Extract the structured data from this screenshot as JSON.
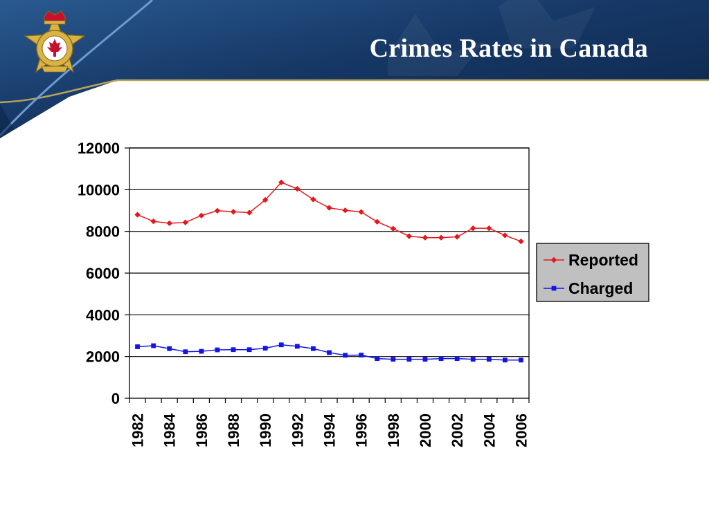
{
  "slide": {
    "title": "Crimes Rates in Canada",
    "theme_colors": {
      "banner_dark": "#0f2a50",
      "banner_mid": "#1f4f86",
      "accent_line": "#b9a25a"
    },
    "logo": {
      "icon": "correctional-service-canada-badge-icon",
      "colors": {
        "gold": "#c8a23a",
        "red": "#c8102e"
      }
    }
  },
  "chart_data": {
    "type": "line",
    "title": "",
    "xlabel": "",
    "ylabel": "",
    "ylim": [
      0,
      12000
    ],
    "yticks": [
      0,
      2000,
      4000,
      6000,
      8000,
      10000,
      12000
    ],
    "xlim": [
      1982,
      2006
    ],
    "xticks": [
      1982,
      1984,
      1986,
      1988,
      1990,
      1992,
      1994,
      1996,
      1998,
      2000,
      2002,
      2004,
      2006
    ],
    "grid": "horizontal",
    "legend": "right",
    "x": [
      1982,
      1983,
      1984,
      1985,
      1986,
      1987,
      1988,
      1989,
      1990,
      1991,
      1992,
      1993,
      1994,
      1995,
      1996,
      1997,
      1998,
      1999,
      2000,
      2001,
      2002,
      2003,
      2004,
      2005,
      2006
    ],
    "series": [
      {
        "name": "Reported",
        "color": "#e8151b",
        "marker": "diamond",
        "values": [
          8800,
          8480,
          8390,
          8430,
          8760,
          8990,
          8940,
          8900,
          9510,
          10350,
          10040,
          9530,
          9130,
          9010,
          8930,
          8460,
          8130,
          7770,
          7700,
          7700,
          7740,
          8150,
          8150,
          7810,
          7520
        ]
      },
      {
        "name": "Charged",
        "color": "#1414e6",
        "marker": "square",
        "values": [
          2470,
          2520,
          2380,
          2230,
          2250,
          2320,
          2330,
          2330,
          2400,
          2560,
          2490,
          2380,
          2190,
          2060,
          2070,
          1900,
          1870,
          1870,
          1870,
          1900,
          1900,
          1870,
          1870,
          1830,
          1830
        ]
      }
    ]
  }
}
